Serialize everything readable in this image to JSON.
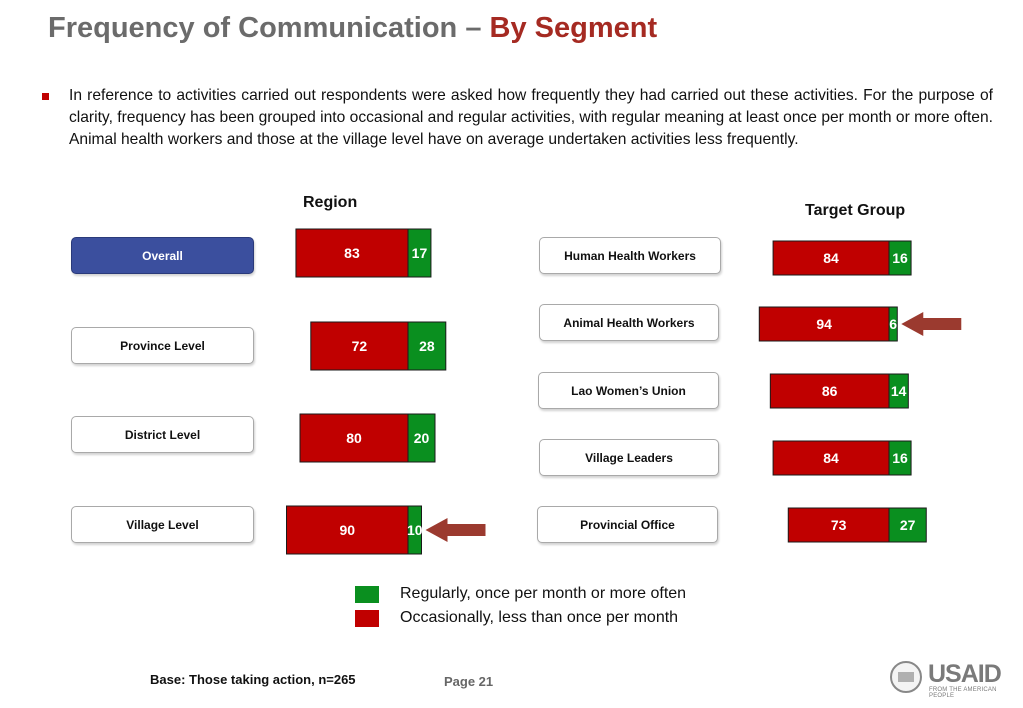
{
  "title": {
    "main": "Frequency of Communication –",
    "accent": "By Segment"
  },
  "intro": "In reference to activities carried out respondents were asked how frequently they had carried out these activities. For the purpose of clarity, frequency has been grouped into occasional and regular activities, with regular meaning at least once per month or more often. Animal health workers and those at the village level have on average undertaken activities less frequently.",
  "chart_data": [
    {
      "type": "bar",
      "orientation": "horizontal",
      "stacked": true,
      "title": "Region",
      "categories": [
        "Overall",
        "Province Level",
        "District Level",
        "Village Level"
      ],
      "selected": "Overall",
      "series": [
        {
          "name": "Occasionally, less than once per month",
          "values": [
            83,
            72,
            80,
            90
          ],
          "color": "#c00000"
        },
        {
          "name": "Regularly, once per month or more often",
          "values": [
            17,
            28,
            20,
            10
          ],
          "color": "#0a8f1f"
        }
      ],
      "highlight": [
        "Village Level"
      ]
    },
    {
      "type": "bar",
      "orientation": "horizontal",
      "stacked": true,
      "title": "Target Group",
      "categories": [
        "Human Health Workers",
        "Animal Health Workers",
        "Lao Women’s Union",
        "Village Leaders",
        "Provincial Office"
      ],
      "series": [
        {
          "name": "Occasionally, less than once per month",
          "values": [
            84,
            94,
            86,
            84,
            73
          ],
          "color": "#c00000"
        },
        {
          "name": "Regularly, once per month or more often",
          "values": [
            16,
            6,
            14,
            16,
            27
          ],
          "color": "#0a8f1f"
        }
      ],
      "highlight": [
        "Animal Health Workers"
      ]
    }
  ],
  "legend": [
    {
      "label": "Regularly, once per month or more often",
      "color": "#0a8f1f"
    },
    {
      "label": "Occasionally, less than once per month",
      "color": "#c00000"
    }
  ],
  "highlight_arrow_color": "#9b3a2f",
  "footer": {
    "base": "Base: Those taking action, n=265",
    "page": "Page 21"
  },
  "logo": {
    "word": "USAID",
    "tagline": "FROM THE AMERICAN PEOPLE"
  }
}
